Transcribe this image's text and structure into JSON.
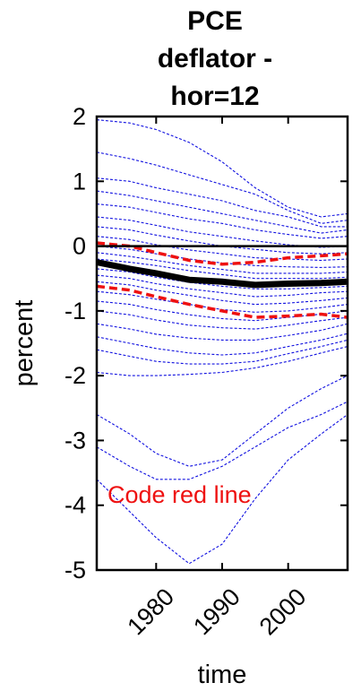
{
  "chart_data": {
    "type": "line",
    "title_lines": [
      "PCE",
      "deflator -",
      "hor=12"
    ],
    "xlabel": "time",
    "ylabel": "percent",
    "xlim": [
      1971,
      2009
    ],
    "ylim": [
      -5,
      2
    ],
    "yticks": [
      2,
      1,
      0,
      -1,
      -2,
      -3,
      -4,
      -5
    ],
    "xticks": [
      1980,
      1990,
      2000
    ],
    "grid": false,
    "legend": "none",
    "annotation": "Code red line",
    "colors": {
      "draws": "#1010e0",
      "band": "#ee1111",
      "median": "#000000",
      "zero": "#000000",
      "annotation": "#ee1111"
    },
    "x": [
      1971,
      1976,
      1980,
      1985,
      1990,
      1995,
      2000,
      2005,
      2009
    ],
    "series": [
      {
        "role": "median",
        "values": [
          -0.25,
          -0.35,
          -0.42,
          -0.52,
          -0.55,
          -0.6,
          -0.58,
          -0.57,
          -0.55
        ]
      },
      {
        "role": "band-upper",
        "values": [
          0.05,
          0.0,
          -0.1,
          -0.22,
          -0.28,
          -0.25,
          -0.18,
          -0.15,
          -0.12
        ]
      },
      {
        "role": "band-lower",
        "values": [
          -0.62,
          -0.68,
          -0.78,
          -0.9,
          -1.0,
          -1.1,
          -1.08,
          -1.05,
          -1.1
        ]
      },
      {
        "role": "draw",
        "values": [
          1.95,
          1.9,
          1.8,
          1.6,
          1.3,
          0.9,
          0.6,
          0.45,
          0.5
        ]
      },
      {
        "role": "draw",
        "values": [
          1.45,
          1.35,
          1.25,
          1.1,
          0.95,
          0.8,
          0.55,
          0.35,
          0.4
        ]
      },
      {
        "role": "draw",
        "values": [
          1.05,
          1.0,
          0.9,
          0.8,
          0.7,
          0.55,
          0.45,
          0.3,
          0.3
        ]
      },
      {
        "role": "draw",
        "values": [
          0.85,
          0.78,
          0.7,
          0.6,
          0.5,
          0.4,
          0.3,
          0.2,
          0.25
        ]
      },
      {
        "role": "draw",
        "values": [
          0.65,
          0.6,
          0.52,
          0.42,
          0.35,
          0.25,
          0.18,
          0.12,
          0.15
        ]
      },
      {
        "role": "draw",
        "values": [
          0.45,
          0.4,
          0.32,
          0.22,
          0.15,
          0.08,
          0.02,
          -0.02,
          0.0
        ]
      },
      {
        "role": "draw",
        "values": [
          0.3,
          0.25,
          0.17,
          0.08,
          0.0,
          -0.05,
          -0.1,
          -0.12,
          -0.1
        ]
      },
      {
        "role": "draw",
        "values": [
          0.15,
          0.1,
          0.02,
          -0.06,
          -0.12,
          -0.18,
          -0.2,
          -0.22,
          -0.2
        ]
      },
      {
        "role": "draw",
        "values": [
          0.0,
          -0.05,
          -0.12,
          -0.2,
          -0.26,
          -0.3,
          -0.32,
          -0.33,
          -0.32
        ]
      },
      {
        "role": "draw",
        "values": [
          -0.1,
          -0.16,
          -0.22,
          -0.3,
          -0.36,
          -0.42,
          -0.42,
          -0.42,
          -0.4
        ]
      },
      {
        "role": "draw",
        "values": [
          -0.2,
          -0.25,
          -0.3,
          -0.38,
          -0.44,
          -0.5,
          -0.5,
          -0.5,
          -0.48
        ]
      },
      {
        "role": "draw",
        "values": [
          -0.35,
          -0.4,
          -0.48,
          -0.56,
          -0.62,
          -0.66,
          -0.66,
          -0.64,
          -0.62
        ]
      },
      {
        "role": "draw",
        "values": [
          -0.45,
          -0.5,
          -0.58,
          -0.66,
          -0.72,
          -0.78,
          -0.76,
          -0.72,
          -0.7
        ]
      },
      {
        "role": "draw",
        "values": [
          -0.55,
          -0.6,
          -0.68,
          -0.76,
          -0.84,
          -0.9,
          -0.88,
          -0.84,
          -0.8
        ]
      },
      {
        "role": "draw",
        "values": [
          -0.7,
          -0.75,
          -0.82,
          -0.9,
          -0.98,
          -1.02,
          -1.0,
          -0.95,
          -0.9
        ]
      },
      {
        "role": "draw",
        "values": [
          -0.85,
          -0.9,
          -0.98,
          -1.06,
          -1.12,
          -1.15,
          -1.1,
          -1.05,
          -1.0
        ]
      },
      {
        "role": "draw",
        "values": [
          -1.0,
          -1.06,
          -1.14,
          -1.22,
          -1.26,
          -1.28,
          -1.22,
          -1.15,
          -1.1
        ]
      },
      {
        "role": "draw",
        "values": [
          -1.2,
          -1.28,
          -1.36,
          -1.42,
          -1.45,
          -1.45,
          -1.38,
          -1.3,
          -1.2
        ]
      },
      {
        "role": "draw",
        "values": [
          -1.4,
          -1.5,
          -1.58,
          -1.65,
          -1.68,
          -1.65,
          -1.55,
          -1.45,
          -1.35
        ]
      },
      {
        "role": "draw",
        "values": [
          -1.6,
          -1.7,
          -1.78,
          -1.82,
          -1.82,
          -1.78,
          -1.66,
          -1.55,
          -1.45
        ]
      },
      {
        "role": "draw",
        "values": [
          -1.95,
          -2.0,
          -2.0,
          -1.98,
          -1.95,
          -1.88,
          -1.78,
          -1.65,
          -1.55
        ]
      },
      {
        "role": "draw",
        "values": [
          -2.6,
          -2.9,
          -3.2,
          -3.4,
          -3.3,
          -2.9,
          -2.5,
          -2.2,
          -2.0
        ]
      },
      {
        "role": "draw",
        "values": [
          -3.1,
          -3.4,
          -3.6,
          -3.6,
          -3.4,
          -3.1,
          -2.8,
          -2.6,
          -2.4
        ]
      },
      {
        "role": "draw",
        "values": [
          -3.6,
          -4.1,
          -4.5,
          -4.9,
          -4.6,
          -3.9,
          -3.3,
          -2.9,
          -2.6
        ]
      }
    ]
  }
}
